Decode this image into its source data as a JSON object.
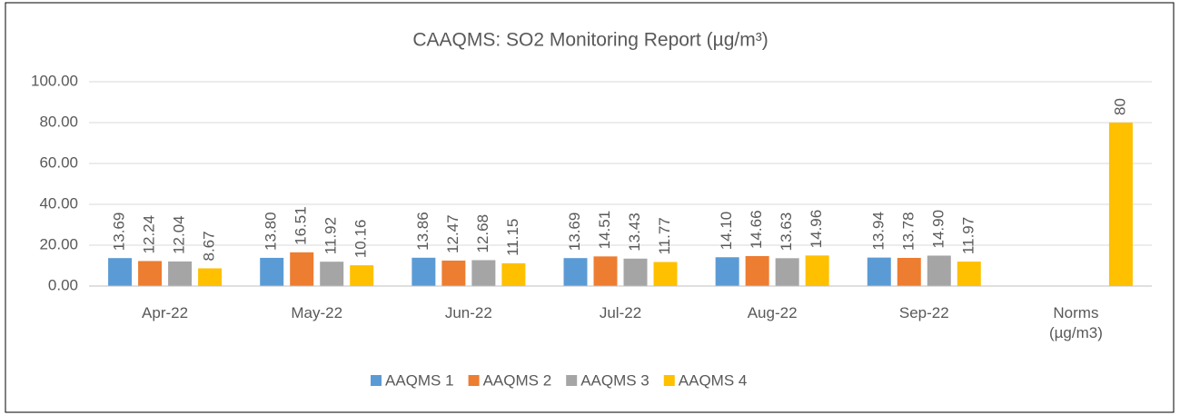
{
  "chart_data": {
    "type": "bar",
    "title": "CAAQMS: SO2 Monitoring Report (µg/m³)",
    "categories": [
      "Apr-22",
      "May-22",
      "Jun-22",
      "Jul-22",
      "Aug-22",
      "Sep-22",
      "Norms (µg/m3)"
    ],
    "series": [
      {
        "name": "AAQMS 1",
        "color": "#5b9bd5",
        "values": [
          13.69,
          13.8,
          13.86,
          13.69,
          14.1,
          13.94,
          null
        ],
        "value_labels": [
          "13.69",
          "13.80",
          "13.86",
          "13.69",
          "14.10",
          "13.94",
          null
        ]
      },
      {
        "name": "AAQMS 2",
        "color": "#ed7d31",
        "values": [
          12.24,
          16.51,
          12.47,
          14.51,
          14.66,
          13.78,
          null
        ],
        "value_labels": [
          "12.24",
          "16.51",
          "12.47",
          "14.51",
          "14.66",
          "13.78",
          null
        ]
      },
      {
        "name": "AAQMS 3",
        "color": "#a5a5a5",
        "values": [
          12.04,
          11.92,
          12.68,
          13.43,
          13.63,
          14.9,
          null
        ],
        "value_labels": [
          "12.04",
          "11.92",
          "12.68",
          "13.43",
          "13.63",
          "14.90",
          null
        ]
      },
      {
        "name": "AAQMS 4",
        "color": "#ffc000",
        "values": [
          8.67,
          10.16,
          11.15,
          11.77,
          14.96,
          11.97,
          80
        ],
        "value_labels": [
          "8.67",
          "10.16",
          "11.15",
          "11.77",
          "14.96",
          "11.97",
          "80"
        ]
      }
    ],
    "ylim": [
      0,
      100
    ],
    "yticks": [
      {
        "value": 0,
        "label": "0.00"
      },
      {
        "value": 20,
        "label": "20.00"
      },
      {
        "value": 40,
        "label": "40.00"
      },
      {
        "value": 60,
        "label": "60.00"
      },
      {
        "value": 80,
        "label": "80.00"
      },
      {
        "value": 100,
        "label": "100.00"
      }
    ],
    "grid": true,
    "legend": "bottom"
  }
}
